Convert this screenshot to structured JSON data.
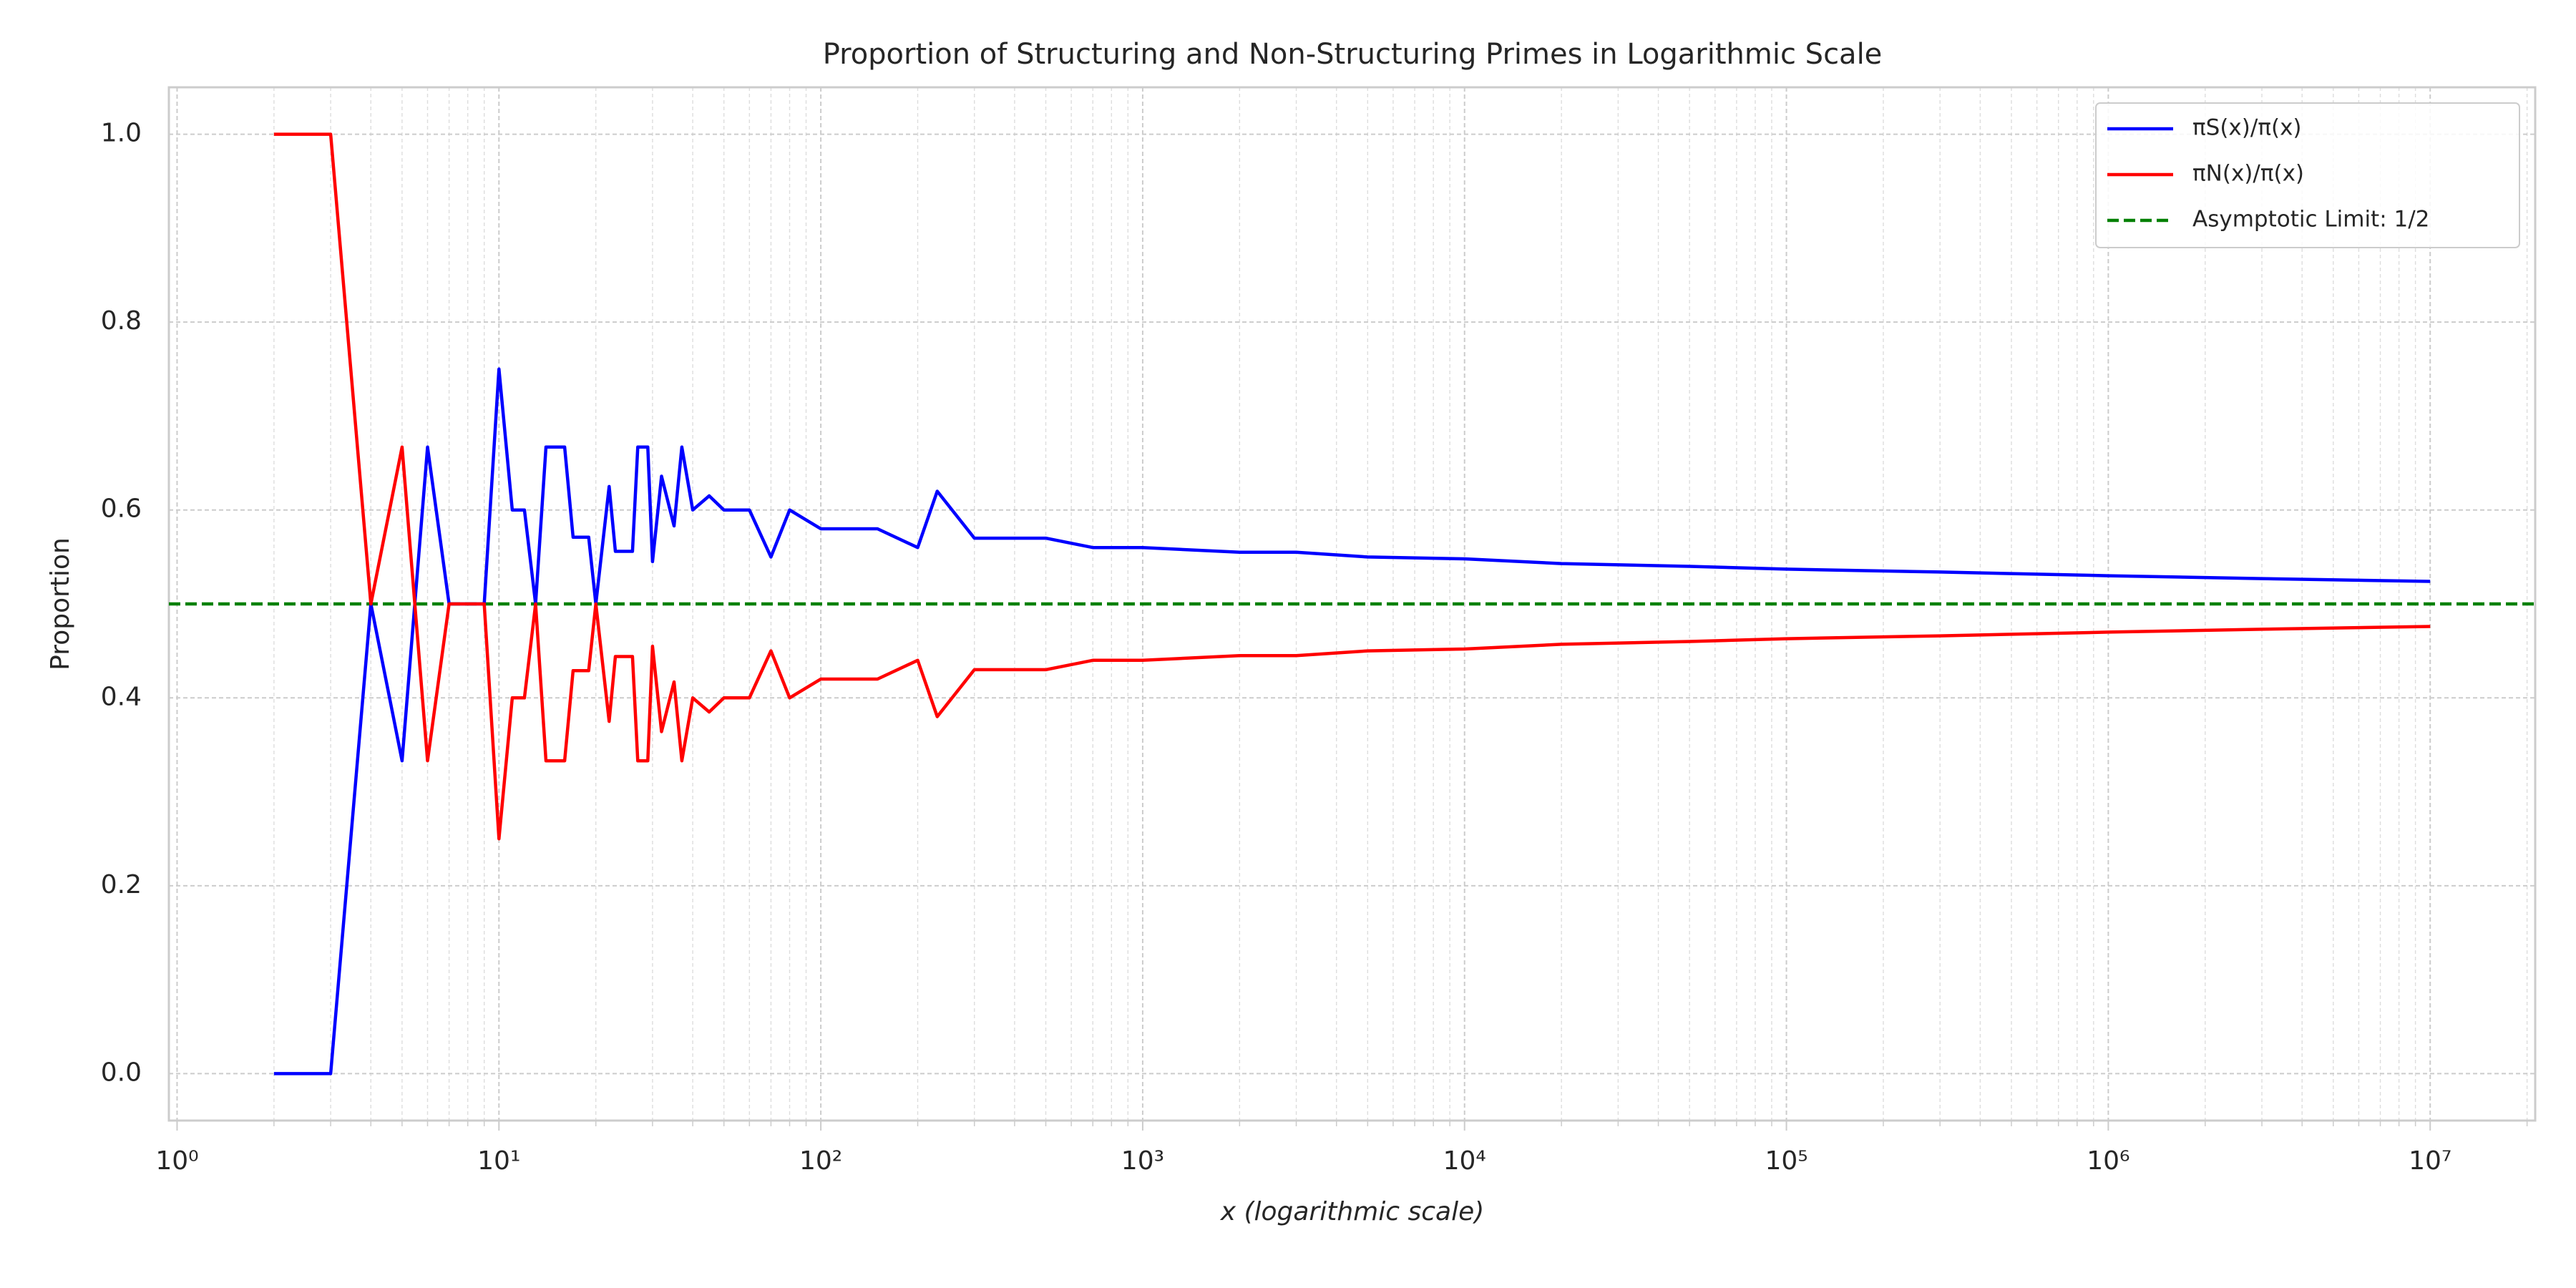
{
  "chart_data": {
    "type": "line",
    "title": "Proportion of Structuring and Non-Structuring Primes in Logarithmic Scale",
    "xlabel": "x (logarithmic scale)",
    "ylabel": "Proportion",
    "xscale": "log",
    "grid": true,
    "minor_grid": true,
    "legend": "upper right",
    "xlim": [
      0.943,
      21200000
    ],
    "ylim": [
      -0.05,
      1.05
    ],
    "xticks": [
      {
        "value": 1,
        "label": "10⁰"
      },
      {
        "value": 10,
        "label": "10¹"
      },
      {
        "value": 100,
        "label": "10²"
      },
      {
        "value": 1000,
        "label": "10³"
      },
      {
        "value": 10000,
        "label": "10⁴"
      },
      {
        "value": 100000,
        "label": "10⁵"
      },
      {
        "value": 1000000,
        "label": "10⁶"
      },
      {
        "value": 10000000,
        "label": "10⁷"
      }
    ],
    "yticks": [
      {
        "value": 0,
        "label": "0.0"
      },
      {
        "value": 0.2,
        "label": "0.2"
      },
      {
        "value": 0.4,
        "label": "0.4"
      },
      {
        "value": 0.6,
        "label": "0.6"
      },
      {
        "value": 0.8,
        "label": "0.8"
      },
      {
        "value": 1,
        "label": "1.0"
      }
    ],
    "x": [
      2,
      3,
      4,
      5,
      6,
      7,
      9,
      10,
      11,
      12,
      13,
      14,
      16,
      17,
      19,
      20,
      22,
      23,
      26,
      27,
      29,
      30,
      32,
      35,
      37,
      40,
      45,
      50,
      60,
      70,
      80,
      100,
      150,
      200,
      230,
      300,
      500,
      700,
      1000,
      2000,
      3000,
      5000,
      10000,
      20000,
      50000,
      100000,
      300000,
      1000000,
      3000000,
      10000000
    ],
    "series": [
      {
        "name": "πS(x)/π(x)",
        "color": "#0000ff",
        "values": [
          0,
          0,
          0.5,
          0.333,
          0.667,
          0.5,
          0.5,
          0.75,
          0.6,
          0.6,
          0.5,
          0.667,
          0.667,
          0.571,
          0.571,
          0.5,
          0.625,
          0.556,
          0.556,
          0.667,
          0.667,
          0.545,
          0.636,
          0.583,
          0.667,
          0.6,
          0.615,
          0.6,
          0.6,
          0.55,
          0.6,
          0.58,
          0.58,
          0.56,
          0.62,
          0.57,
          0.57,
          0.56,
          0.56,
          0.555,
          0.555,
          0.55,
          0.548,
          0.543,
          0.54,
          0.537,
          0.534,
          0.53,
          0.527,
          0.524
        ]
      },
      {
        "name": "πN(x)/π(x)",
        "color": "#ff0000",
        "values": [
          1,
          1,
          0.5,
          0.667,
          0.333,
          0.5,
          0.5,
          0.25,
          0.4,
          0.4,
          0.5,
          0.333,
          0.333,
          0.429,
          0.429,
          0.5,
          0.375,
          0.444,
          0.444,
          0.333,
          0.333,
          0.455,
          0.364,
          0.417,
          0.333,
          0.4,
          0.385,
          0.4,
          0.4,
          0.45,
          0.4,
          0.42,
          0.42,
          0.44,
          0.38,
          0.43,
          0.43,
          0.44,
          0.44,
          0.445,
          0.445,
          0.45,
          0.452,
          0.457,
          0.46,
          0.463,
          0.466,
          0.47,
          0.473,
          0.476
        ]
      }
    ],
    "hlines": [
      {
        "name": "Asymptotic Limit: 1/2",
        "color": "#008000",
        "value": 0.5
      }
    ]
  }
}
